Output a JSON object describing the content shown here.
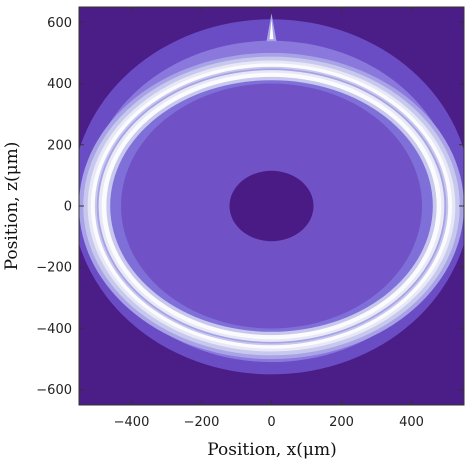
{
  "chart_data": {
    "type": "heatmap",
    "subtype": "filled-contour",
    "xlabel": "Position, x(μm)",
    "ylabel": "Position, z(μm)",
    "xlim": [
      -550,
      550
    ],
    "ylim": [
      -650,
      650
    ],
    "x_ticks": [
      -400,
      -200,
      0,
      200,
      400
    ],
    "y_ticks": [
      -600,
      -400,
      -200,
      0,
      200,
      400,
      600
    ],
    "x_tick_labels": [
      "−400",
      "−200",
      "0",
      "200",
      "400"
    ],
    "y_tick_labels": [
      "−600",
      "−400",
      "−200",
      "0",
      "200",
      "400",
      "600"
    ],
    "grid": false,
    "structures": {
      "center_core": {
        "cx": 0,
        "cz": 0,
        "rx": 120,
        "rz": 115
      },
      "inner_disc": {
        "cx": 0,
        "cz": 0,
        "rx": 430,
        "rz": 400
      },
      "bright_ring": {
        "cx": 0,
        "cz": 0,
        "rx": 495,
        "rz": 445,
        "band_width": 55
      },
      "outer_halo": {
        "cx": 0,
        "cz": 30,
        "rx": 570,
        "rz": 580
      },
      "top_notch": {
        "x": 0,
        "z": 610
      }
    },
    "colors": {
      "background": "#4b1d86",
      "core": "#4a1a85",
      "outer_halo": "#6a4cc4",
      "band_2": "#8a78dc",
      "band_3": "#a8a2e6",
      "band_4": "#c8c8ee",
      "band_5": "#e6e8f6",
      "ring_peak": "#fbfbfd",
      "ring_gap": "#7f6fd8",
      "inner_disc": "#7052c6"
    }
  }
}
